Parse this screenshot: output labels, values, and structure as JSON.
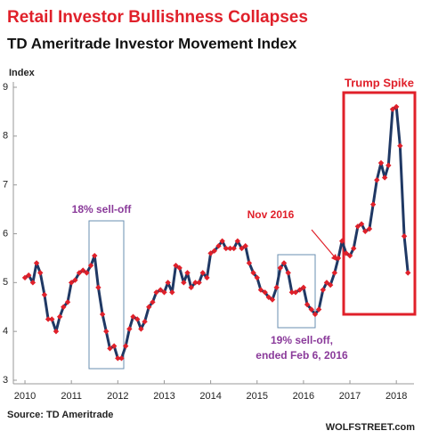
{
  "chart_data": {
    "type": "line",
    "title": "Retail Investor Bullishness Collapses",
    "subtitle": "TD Ameritrade Investor Movement Index",
    "y_label": "Index",
    "source": "Source: TD Ameritrade",
    "credit": "WOLFSTREET.com",
    "annotations": [
      {
        "lines": [
          "Trump Spike"
        ],
        "color": "#e0202a"
      },
      {
        "lines": [
          "18% sell-off"
        ],
        "color": "#8a3a9a"
      },
      {
        "lines": [
          "19% sell-off,",
          "ended Feb 6, 2016"
        ],
        "color": "#8a3a9a"
      },
      {
        "lines": [
          "Nov 2016"
        ],
        "color": "#e0202a"
      }
    ],
    "x": [
      2010,
      2010.08,
      2010.17,
      2010.25,
      2010.33,
      2010.42,
      2010.5,
      2010.58,
      2010.67,
      2010.75,
      2010.83,
      2010.92,
      2011,
      2011.08,
      2011.17,
      2011.25,
      2011.33,
      2011.42,
      2011.5,
      2011.58,
      2011.67,
      2011.75,
      2011.83,
      2011.92,
      2012,
      2012.08,
      2012.17,
      2012.25,
      2012.33,
      2012.42,
      2012.5,
      2012.58,
      2012.67,
      2012.75,
      2012.83,
      2012.92,
      2013,
      2013.08,
      2013.17,
      2013.25,
      2013.33,
      2013.42,
      2013.5,
      2013.58,
      2013.67,
      2013.75,
      2013.83,
      2013.92,
      2014,
      2014.08,
      2014.17,
      2014.25,
      2014.33,
      2014.42,
      2014.5,
      2014.58,
      2014.67,
      2014.75,
      2014.83,
      2014.92,
      2015,
      2015.08,
      2015.17,
      2015.25,
      2015.33,
      2015.42,
      2015.5,
      2015.58,
      2015.67,
      2015.75,
      2015.83,
      2015.92,
      2016,
      2016.08,
      2016.17,
      2016.25,
      2016.33,
      2016.42,
      2016.5,
      2016.58,
      2016.67,
      2016.75,
      2016.83,
      2016.92,
      2017,
      2017.08,
      2017.17,
      2017.25,
      2017.33,
      2017.42,
      2017.5,
      2017.58,
      2017.67,
      2017.75,
      2017.83,
      2017.92,
      2018,
      2018.08,
      2018.17,
      2018.25
    ],
    "values": [
      5.1,
      5.15,
      5.0,
      5.4,
      5.2,
      4.75,
      4.25,
      4.25,
      4.0,
      4.3,
      4.5,
      4.6,
      5.0,
      5.05,
      5.2,
      5.25,
      5.2,
      5.35,
      5.55,
      4.9,
      4.35,
      4.0,
      3.65,
      3.7,
      3.45,
      3.45,
      3.7,
      4.05,
      4.3,
      4.25,
      4.05,
      4.2,
      4.5,
      4.6,
      4.8,
      4.85,
      4.8,
      5.0,
      4.8,
      5.35,
      5.3,
      5.0,
      5.2,
      4.9,
      5.0,
      5.0,
      5.2,
      5.1,
      5.6,
      5.65,
      5.75,
      5.85,
      5.7,
      5.7,
      5.7,
      5.85,
      5.7,
      5.75,
      5.4,
      5.2,
      5.1,
      4.85,
      4.8,
      4.7,
      4.65,
      4.9,
      5.3,
      5.4,
      5.2,
      4.8,
      4.8,
      4.85,
      4.9,
      4.55,
      4.45,
      4.35,
      4.45,
      4.85,
      5.0,
      4.95,
      5.2,
      5.5,
      5.85,
      5.6,
      5.55,
      5.7,
      6.15,
      6.2,
      6.05,
      6.1,
      6.6,
      7.1,
      7.45,
      7.15,
      7.4,
      8.55,
      8.6,
      7.8,
      5.95,
      5.2
    ],
    "color": "#1f3864",
    "marker_color": "#e0202a",
    "xlim": [
      2009.75,
      2018.38
    ],
    "xticks": [
      2010,
      2011,
      2012,
      2013,
      2014,
      2015,
      2016,
      2017,
      2018
    ],
    "ylim": [
      3,
      9
    ],
    "yticks": [
      3,
      4,
      5,
      6,
      7,
      8,
      9
    ],
    "grid": false
  }
}
